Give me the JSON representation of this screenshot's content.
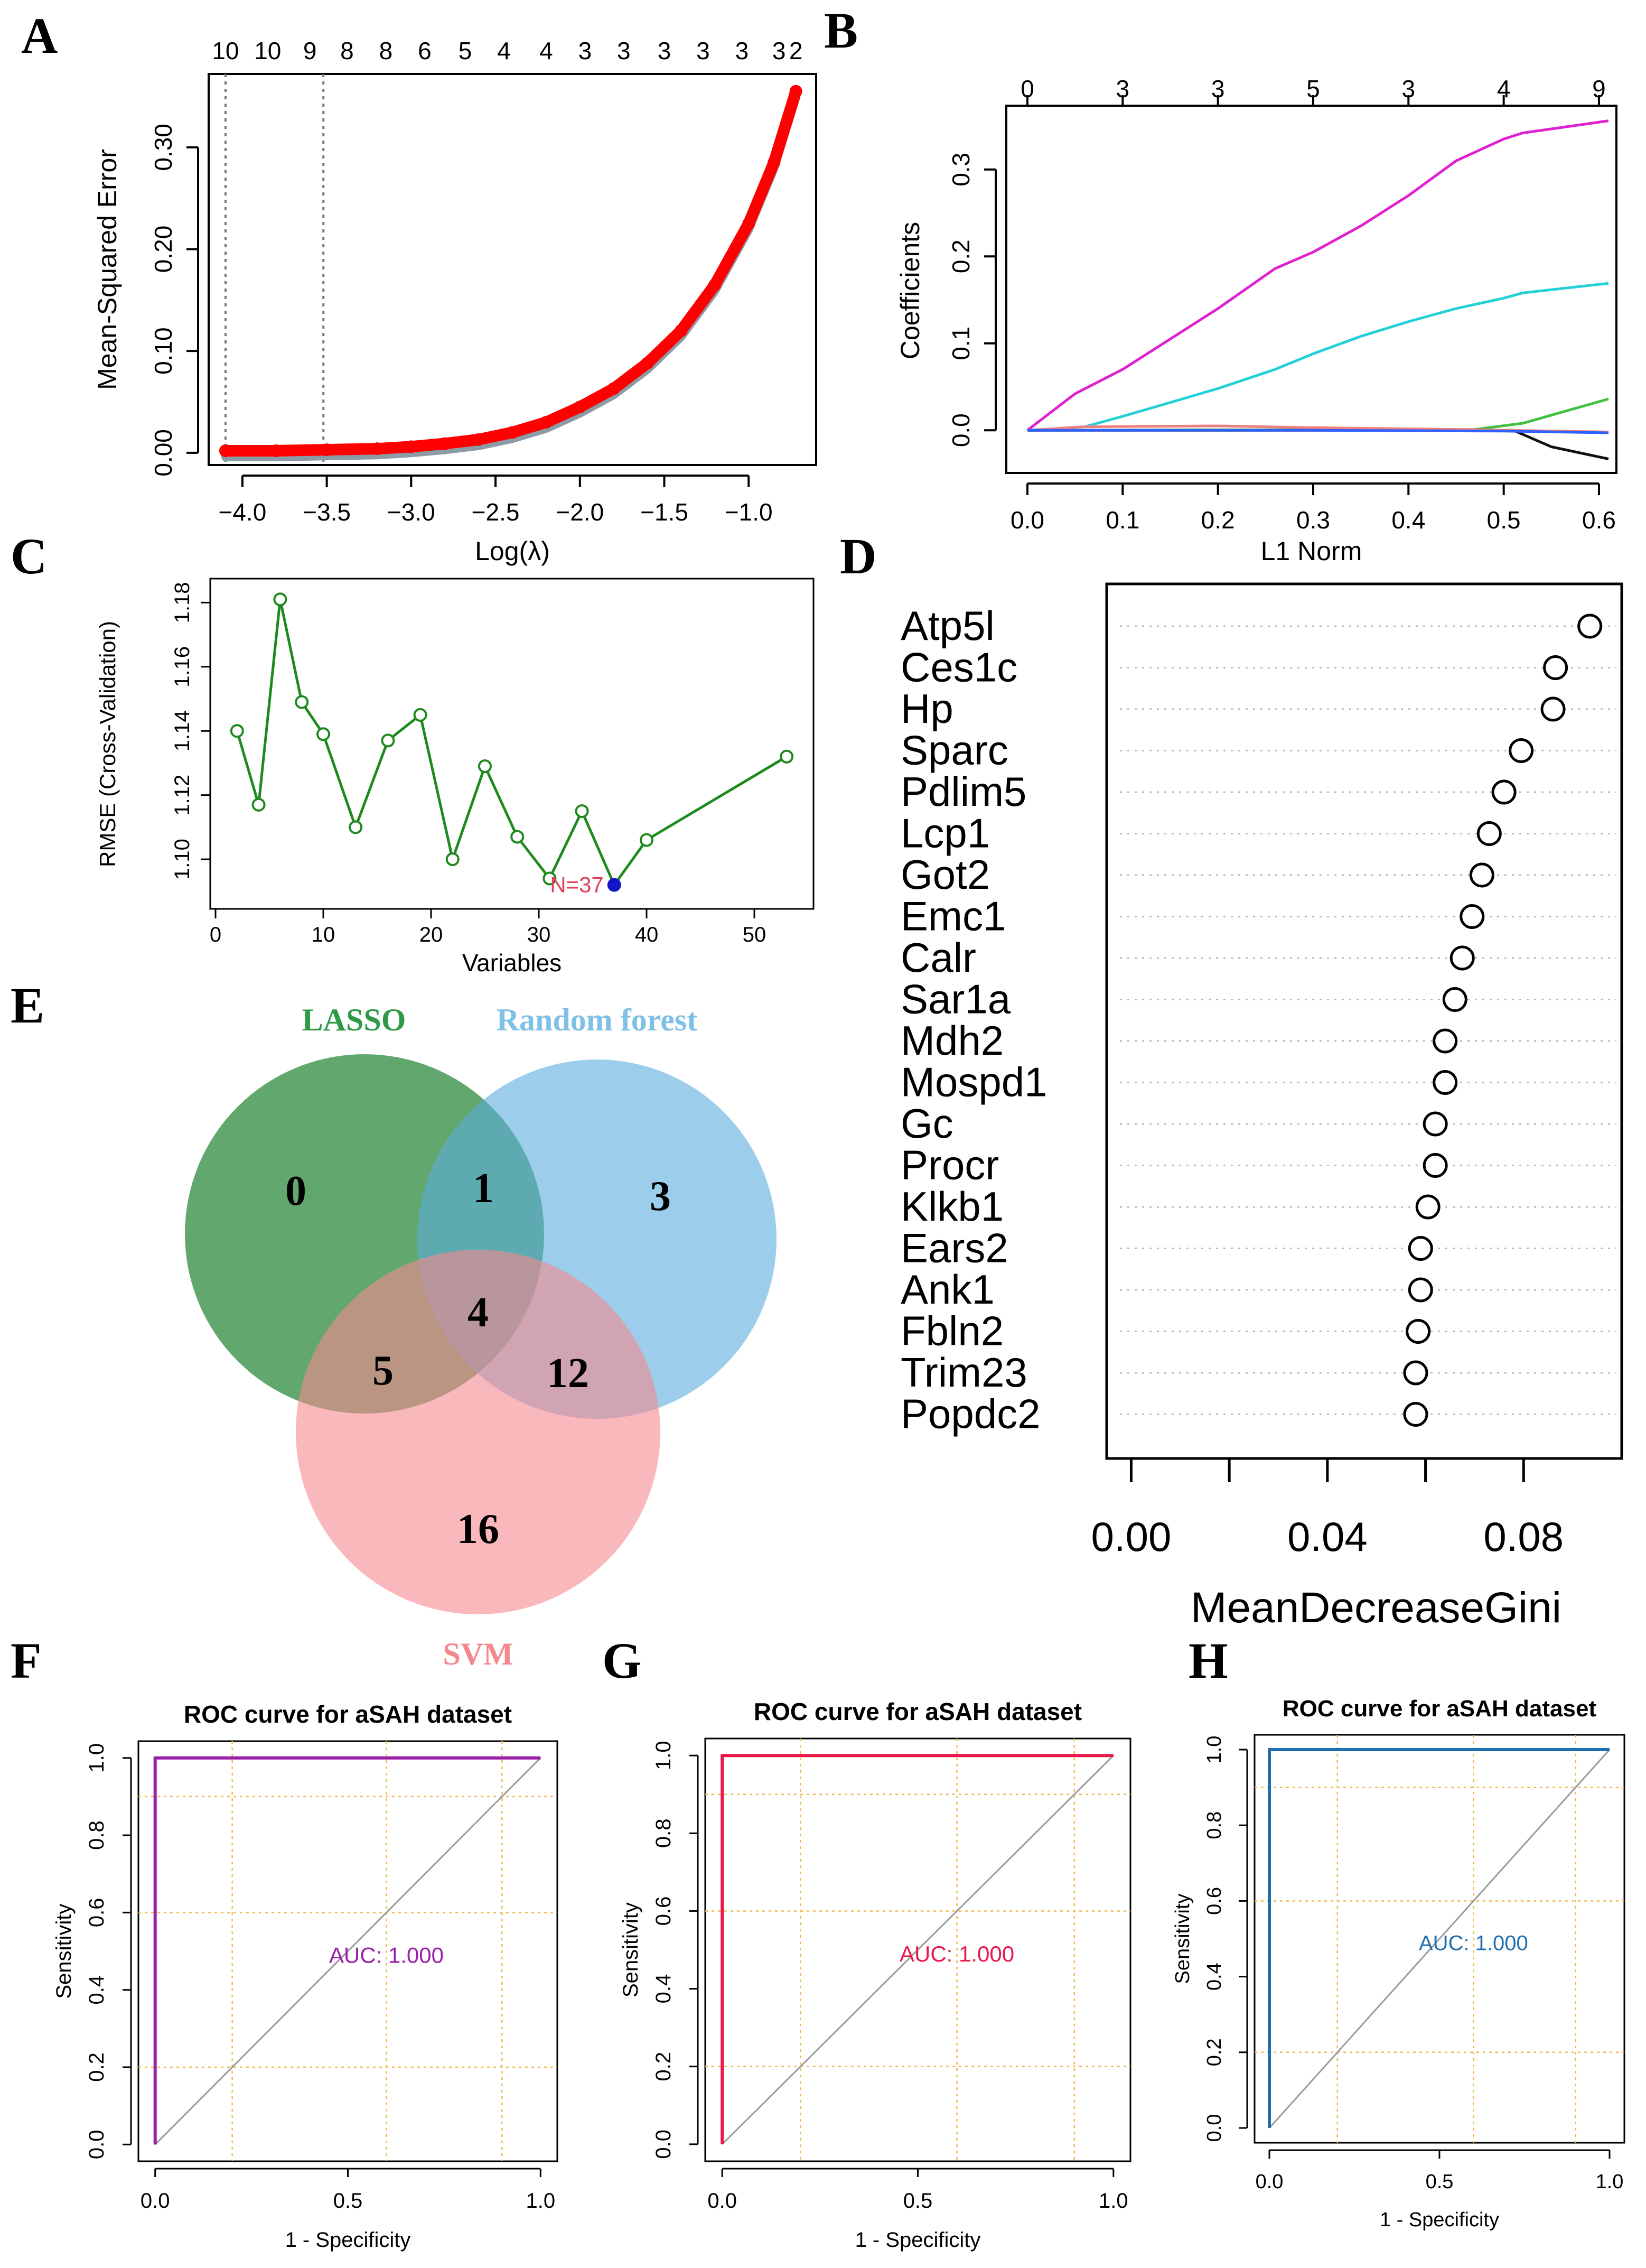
{
  "figure": {
    "panel_letters": [
      "A",
      "B",
      "C",
      "D",
      "E",
      "F",
      "G",
      "H"
    ]
  },
  "chart_data": [
    {
      "panel": "A",
      "type": "line",
      "title": "",
      "xlabel": "Log(λ)",
      "ylabel": "Mean-Squared Error",
      "xlim": [
        -4.2,
        -0.6
      ],
      "ylim": [
        0.0,
        0.36
      ],
      "xticks": [
        -4.0,
        -3.5,
        -3.0,
        -2.5,
        -2.0,
        -1.5,
        -1.0
      ],
      "xtick_labels": [
        "−4.0",
        "−3.5",
        "−3.0",
        "−2.5",
        "−2.0",
        "−1.5",
        "−1.0"
      ],
      "yticks": [
        0.0,
        0.1,
        0.2,
        0.3
      ],
      "ytick_labels": [
        "0.00",
        "0.10",
        "0.20",
        "0.30"
      ],
      "top_tick_labels": [
        "10",
        "10",
        "9",
        "8",
        "8",
        "6",
        "5",
        "4",
        "4",
        "3",
        "3",
        "3",
        "3",
        "3",
        "3",
        "2"
      ],
      "top_tick_positions": [
        -4.1,
        -3.85,
        -3.6,
        -3.38,
        -3.15,
        -2.92,
        -2.68,
        -2.45,
        -2.2,
        -1.97,
        -1.74,
        -1.5,
        -1.27,
        -1.04,
        -0.82,
        -0.72
      ],
      "vlines": [
        -4.1,
        -3.52
      ],
      "color": "#ff0000",
      "band_color": "#8c9ca6",
      "x": [
        -4.1,
        -3.8,
        -3.5,
        -3.2,
        -3.0,
        -2.8,
        -2.6,
        -2.4,
        -2.2,
        -2.0,
        -1.8,
        -1.6,
        -1.4,
        -1.2,
        -1.0,
        -0.85,
        -0.72
      ],
      "y": [
        0.002,
        0.002,
        0.003,
        0.004,
        0.006,
        0.009,
        0.013,
        0.02,
        0.03,
        0.045,
        0.063,
        0.088,
        0.12,
        0.165,
        0.225,
        0.285,
        0.355
      ]
    },
    {
      "panel": "B",
      "type": "line",
      "title": "",
      "xlabel": "L1 Norm",
      "ylabel": "Coefficients",
      "xlim": [
        0.0,
        0.61
      ],
      "ylim": [
        -0.04,
        0.36
      ],
      "xticks": [
        0.0,
        0.1,
        0.2,
        0.3,
        0.4,
        0.5,
        0.6
      ],
      "xtick_labels": [
        "0.0",
        "0.1",
        "0.2",
        "0.3",
        "0.4",
        "0.5",
        "0.6"
      ],
      "yticks": [
        0.0,
        0.1,
        0.2,
        0.3
      ],
      "ytick_labels": [
        "0.0",
        "0.1",
        "0.2",
        "0.3"
      ],
      "top_tick_labels": [
        "0",
        "3",
        "3",
        "5",
        "3",
        "4",
        "9"
      ],
      "top_tick_positions": [
        0.0,
        0.1,
        0.2,
        0.3,
        0.4,
        0.5,
        0.6
      ],
      "series": [
        {
          "name": "magenta",
          "color": "#e020d0",
          "x": [
            0.0,
            0.05,
            0.1,
            0.15,
            0.2,
            0.26,
            0.3,
            0.35,
            0.4,
            0.45,
            0.5,
            0.52,
            0.61
          ],
          "y": [
            0.0,
            0.042,
            0.07,
            0.105,
            0.14,
            0.186,
            0.205,
            0.235,
            0.27,
            0.31,
            0.335,
            0.342,
            0.356
          ]
        },
        {
          "name": "cyan",
          "color": "#22d0d8",
          "x": [
            0.0,
            0.06,
            0.1,
            0.15,
            0.2,
            0.26,
            0.3,
            0.35,
            0.4,
            0.45,
            0.5,
            0.52,
            0.61
          ],
          "y": [
            0.0,
            0.004,
            0.016,
            0.032,
            0.048,
            0.07,
            0.088,
            0.108,
            0.125,
            0.14,
            0.152,
            0.158,
            0.169
          ]
        },
        {
          "name": "green",
          "color": "#40c040",
          "x": [
            0.0,
            0.47,
            0.52,
            0.61
          ],
          "y": [
            0.0,
            0.001,
            0.008,
            0.036
          ]
        },
        {
          "name": "black",
          "color": "#111111",
          "x": [
            0.0,
            0.51,
            0.55,
            0.61
          ],
          "y": [
            0.0,
            0.0,
            -0.019,
            -0.033
          ]
        },
        {
          "name": "pink",
          "color": "#f08080",
          "x": [
            0.0,
            0.06,
            0.2,
            0.3,
            0.45,
            0.61
          ],
          "y": [
            0.0,
            0.004,
            0.005,
            0.003,
            0.001,
            -0.002
          ]
        },
        {
          "name": "blue",
          "color": "#3060ff",
          "x": [
            0.0,
            0.3,
            0.5,
            0.61
          ],
          "y": [
            0.0,
            0.0,
            -0.001,
            -0.003
          ]
        }
      ]
    },
    {
      "panel": "C",
      "type": "line",
      "title": "",
      "xlabel": "Variables",
      "ylabel": "RMSE (Cross-Validation)",
      "xlim": [
        0,
        55
      ],
      "ylim": [
        1.087,
        1.185
      ],
      "xticks": [
        0,
        10,
        20,
        30,
        40,
        50
      ],
      "xtick_labels": [
        "0",
        "10",
        "20",
        "30",
        "40",
        "50"
      ],
      "yticks": [
        1.1,
        1.12,
        1.14,
        1.16,
        1.18
      ],
      "ytick_labels": [
        "1.10",
        "1.12",
        "1.14",
        "1.16",
        "1.18"
      ],
      "color": "#1e8a1e",
      "x": [
        2,
        4,
        6,
        8,
        10,
        13,
        16,
        19,
        22,
        25,
        28,
        31,
        34,
        37,
        40,
        53
      ],
      "y": [
        1.14,
        1.117,
        1.181,
        1.149,
        1.139,
        1.11,
        1.137,
        1.145,
        1.1,
        1.129,
        1.107,
        1.094,
        1.115,
        1.092,
        1.106,
        1.132
      ],
      "highlight": {
        "x": 37,
        "y": 1.092,
        "label": "N=37",
        "color": "#1414c8",
        "label_color": "#e0405a"
      }
    },
    {
      "panel": "D",
      "type": "scatter",
      "title": "",
      "xlabel": "MeanDecreaseGini",
      "ylabel": "",
      "xlim": [
        -0.005,
        0.1
      ],
      "xticks": [
        0.0,
        0.02,
        0.04,
        0.06,
        0.08
      ],
      "xtick_labels": [
        "0.00",
        "",
        "0.04",
        "",
        "0.08"
      ],
      "categories": [
        "Atp5l",
        "Ces1c",
        "Hp",
        "Sparc",
        "Pdlim5",
        "Lcp1",
        "Got2",
        "Emc1",
        "Calr",
        "Sar1a",
        "Mdh2",
        "Mospd1",
        "Gc",
        "Procr",
        "Klkb1",
        "Ears2",
        "Ank1",
        "Fbln2",
        "Trim23",
        "Popdc2"
      ],
      "values": [
        0.0935,
        0.0865,
        0.086,
        0.0795,
        0.076,
        0.073,
        0.0715,
        0.0695,
        0.0675,
        0.066,
        0.064,
        0.064,
        0.062,
        0.062,
        0.0605,
        0.059,
        0.059,
        0.0585,
        0.058,
        0.058
      ]
    },
    {
      "panel": "E",
      "type": "venn",
      "sets": [
        {
          "name": "LASSO",
          "color": "#2e8b3e"
        },
        {
          "name": "Random forest",
          "color": "#5aaede"
        },
        {
          "name": "SVM",
          "color": "#f5888e"
        }
      ],
      "regions": [
        {
          "sets": [
            "LASSO"
          ],
          "value": 0
        },
        {
          "sets": [
            "Random forest"
          ],
          "value": 3
        },
        {
          "sets": [
            "SVM"
          ],
          "value": 16
        },
        {
          "sets": [
            "LASSO",
            "Random forest"
          ],
          "value": 1
        },
        {
          "sets": [
            "LASSO",
            "SVM"
          ],
          "value": 5
        },
        {
          "sets": [
            "Random forest",
            "SVM"
          ],
          "value": 12
        },
        {
          "sets": [
            "LASSO",
            "Random forest",
            "SVM"
          ],
          "value": 4
        }
      ]
    },
    {
      "panel": "F",
      "type": "line",
      "title": "ROC curve for aSAH dataset",
      "xlabel": "1 - Specificity",
      "ylabel": "Sensitivity",
      "xlim": [
        0,
        1
      ],
      "ylim": [
        0,
        1
      ],
      "xticks": [
        0.0,
        0.5,
        1.0
      ],
      "xtick_labels": [
        "0.0",
        "0.5",
        "1.0"
      ],
      "yticks": [
        0.0,
        0.2,
        0.4,
        0.6,
        0.8,
        1.0
      ],
      "ytick_labels": [
        "0.0",
        "0.2",
        "0.4",
        "0.6",
        "0.8",
        "1.0"
      ],
      "grid": [
        0.2,
        0.6,
        0.9
      ],
      "color": "#9b1fa8",
      "x": [
        0,
        0,
        1
      ],
      "y": [
        0,
        1,
        1
      ],
      "auc_label": "AUC: 1.000"
    },
    {
      "panel": "G",
      "type": "line",
      "title": "ROC curve for aSAH dataset",
      "xlabel": "1 - Specificity",
      "ylabel": "Sensitivity",
      "xlim": [
        0,
        1
      ],
      "ylim": [
        0,
        1
      ],
      "xticks": [
        0.0,
        0.5,
        1.0
      ],
      "xtick_labels": [
        "0.0",
        "0.5",
        "1.0"
      ],
      "yticks": [
        0.0,
        0.2,
        0.4,
        0.6,
        0.8,
        1.0
      ],
      "ytick_labels": [
        "0.0",
        "0.2",
        "0.4",
        "0.6",
        "0.8",
        "1.0"
      ],
      "grid": [
        0.2,
        0.6,
        0.9
      ],
      "color": "#e8184a",
      "x": [
        0,
        0,
        1
      ],
      "y": [
        0,
        1,
        1
      ],
      "auc_label": "AUC: 1.000"
    },
    {
      "panel": "H",
      "type": "line",
      "title": "ROC curve for aSAH dataset",
      "xlabel": "1 - Specificity",
      "ylabel": "Sensitivity",
      "xlim": [
        0,
        1
      ],
      "ylim": [
        0,
        1
      ],
      "xticks": [
        0.0,
        0.5,
        1.0
      ],
      "xtick_labels": [
        "0.0",
        "0.5",
        "1.0"
      ],
      "yticks": [
        0.0,
        0.2,
        0.4,
        0.6,
        0.8,
        1.0
      ],
      "ytick_labels": [
        "0.0",
        "0.2",
        "0.4",
        "0.6",
        "0.8",
        "1.0"
      ],
      "grid": [
        0.2,
        0.6,
        0.9
      ],
      "color": "#1f6fb0",
      "x": [
        0,
        0,
        1
      ],
      "y": [
        0,
        1,
        1
      ],
      "auc_label": "AUC: 1.000"
    }
  ]
}
